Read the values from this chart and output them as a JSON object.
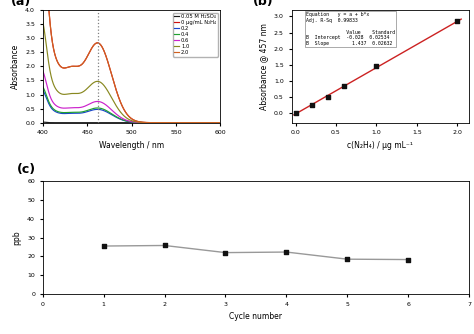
{
  "panel_a": {
    "dashed_line_x": 462,
    "curves": [
      {
        "label": "0.05 M H₂SO₄",
        "color": "#1a1a1a",
        "peak_abs": 0.0,
        "is_baseline": true
      },
      {
        "label": "0 μg/mL N₂H₄",
        "color": "#cc1111",
        "peak_abs": 2.82,
        "is_baseline": false
      },
      {
        "label": "0.2",
        "color": "#1a44cc",
        "peak_abs": 0.47,
        "is_baseline": false
      },
      {
        "label": "0.4",
        "color": "#20a030",
        "peak_abs": 0.52,
        "is_baseline": false
      },
      {
        "label": "0.6",
        "color": "#cc22cc",
        "peak_abs": 0.75,
        "is_baseline": false
      },
      {
        "label": "1.0",
        "color": "#888820",
        "peak_abs": 1.46,
        "is_baseline": false
      },
      {
        "label": "2.0",
        "color": "#d06020",
        "peak_abs": 2.82,
        "is_baseline": false
      }
    ],
    "xlabel": "Wavelength / nm",
    "ylabel": "Absorbance",
    "xlim": [
      400,
      600
    ],
    "ylim": [
      0,
      4.0
    ],
    "yticks": [
      0.0,
      0.5,
      1.0,
      1.5,
      2.0,
      2.5,
      3.0,
      3.5,
      4.0
    ],
    "xticks": [
      400,
      450,
      500,
      550,
      600
    ]
  },
  "panel_b": {
    "x_data": [
      0.0,
      0.2,
      0.4,
      0.6,
      1.0,
      2.0
    ],
    "y_data": [
      0.0,
      0.257,
      0.505,
      0.835,
      1.465,
      2.846
    ],
    "line_color": "#cc2222",
    "marker_color": "#111111",
    "intercept": -0.028,
    "slope": 1.437,
    "xlabel": "c(N₂H₄) / μg mL⁻¹",
    "ylabel": "Absorbance @ 457 nm",
    "xlim": [
      -0.05,
      2.15
    ],
    "ylim": [
      -0.3,
      3.2
    ],
    "xticks": [
      0.0,
      0.5,
      1.0,
      1.5,
      2.0
    ],
    "yticks": [
      0.0,
      0.5,
      1.0,
      1.5,
      2.0,
      2.5,
      3.0
    ]
  },
  "panel_c": {
    "x_data": [
      1,
      2,
      3,
      4,
      5,
      6
    ],
    "y_data": [
      25.5,
      25.8,
      22.0,
      22.3,
      18.5,
      18.3
    ],
    "line_color": "#999999",
    "marker_color": "#111111",
    "xlabel": "Cycle number",
    "ylabel": "ppb",
    "xlim": [
      0,
      7
    ],
    "ylim": [
      0,
      60
    ],
    "xticks": [
      0,
      1,
      2,
      3,
      4,
      5,
      6,
      7
    ],
    "yticks": [
      0,
      10,
      20,
      30,
      40,
      50,
      60
    ]
  },
  "fig_bg": "#ffffff"
}
